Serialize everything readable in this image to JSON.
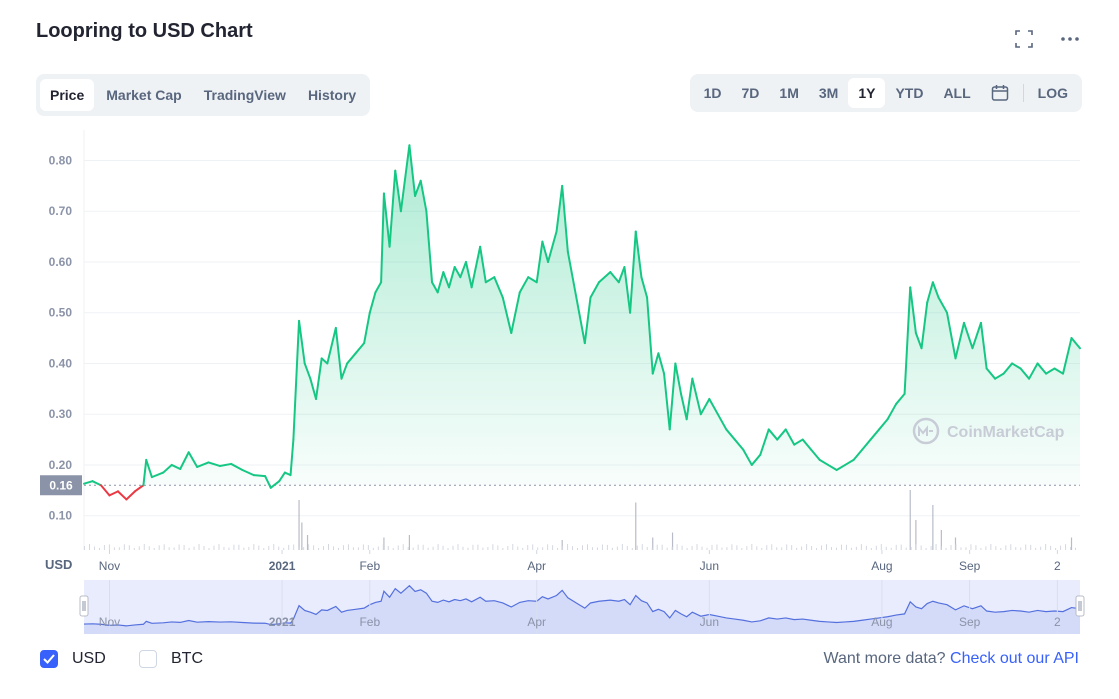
{
  "title": "Loopring to USD Chart",
  "header_icons": [
    "fullscreen-icon",
    "more-options-icon"
  ],
  "tabs": [
    {
      "label": "Price",
      "active": true
    },
    {
      "label": "Market Cap",
      "active": false
    },
    {
      "label": "TradingView",
      "active": false
    },
    {
      "label": "History",
      "active": false
    }
  ],
  "ranges": [
    {
      "label": "1D",
      "active": false
    },
    {
      "label": "7D",
      "active": false
    },
    {
      "label": "1M",
      "active": false
    },
    {
      "label": "3M",
      "active": false
    },
    {
      "label": "1Y",
      "active": true
    },
    {
      "label": "YTD",
      "active": false
    },
    {
      "label": "ALL",
      "active": false
    }
  ],
  "scale_label": "LOG",
  "calendar_icon": "calendar-icon",
  "colors": {
    "up": "#16c784",
    "down": "#ea3943",
    "accent": "#3861fb",
    "volume": "#b8bcc8",
    "navigator": "#5470de"
  },
  "watermark": "CoinMarketCap",
  "currency_label": "USD",
  "checkboxes": [
    {
      "label": "USD",
      "checked": true
    },
    {
      "label": "BTC",
      "checked": false
    }
  ],
  "more_data": {
    "text": "Want more data?",
    "link": "Check out our API"
  },
  "chart_data": {
    "type": "area",
    "title": "Loopring to USD Chart",
    "ylabel": "USD",
    "ylim": [
      0.06,
      0.86
    ],
    "y_ticks": [
      "0.10",
      "0.20",
      "0.30",
      "0.40",
      "0.50",
      "0.60",
      "0.70",
      "0.80"
    ],
    "current_price_label": "0.16",
    "baseline": 0.16,
    "x_range": [
      "2020-10-23",
      "2021-10-10"
    ],
    "x_ticks": [
      {
        "label": "Nov",
        "date": "2020-11-01"
      },
      {
        "label": "2021",
        "date": "2021-01-01"
      },
      {
        "label": "Feb",
        "date": "2021-02-01"
      },
      {
        "label": "Apr",
        "date": "2021-04-01"
      },
      {
        "label": "Jun",
        "date": "2021-06-01"
      },
      {
        "label": "Aug",
        "date": "2021-08-01"
      },
      {
        "label": "Sep",
        "date": "2021-09-01"
      },
      {
        "label": "2",
        "date": "2021-10-02"
      }
    ],
    "series": [
      {
        "points": [
          [
            "2020-10-23",
            0.163
          ],
          [
            "2020-10-26",
            0.168
          ],
          [
            "2020-10-29",
            0.16
          ],
          [
            "2020-11-01",
            0.14
          ],
          [
            "2020-11-04",
            0.148
          ],
          [
            "2020-11-07",
            0.132
          ],
          [
            "2020-11-10",
            0.148
          ],
          [
            "2020-11-13",
            0.16
          ],
          [
            "2020-11-14",
            0.21
          ],
          [
            "2020-11-16",
            0.176
          ],
          [
            "2020-11-20",
            0.185
          ],
          [
            "2020-11-23",
            0.2
          ],
          [
            "2020-11-26",
            0.192
          ],
          [
            "2020-11-29",
            0.225
          ],
          [
            "2020-12-02",
            0.196
          ],
          [
            "2020-12-06",
            0.205
          ],
          [
            "2020-12-10",
            0.198
          ],
          [
            "2020-12-14",
            0.202
          ],
          [
            "2020-12-18",
            0.19
          ],
          [
            "2020-12-22",
            0.18
          ],
          [
            "2020-12-26",
            0.178
          ],
          [
            "2020-12-28",
            0.155
          ],
          [
            "2020-12-31",
            0.168
          ],
          [
            "2021-01-02",
            0.185
          ],
          [
            "2021-01-04",
            0.18
          ],
          [
            "2021-01-05",
            0.25
          ],
          [
            "2021-01-07",
            0.484
          ],
          [
            "2021-01-09",
            0.4
          ],
          [
            "2021-01-11",
            0.37
          ],
          [
            "2021-01-13",
            0.33
          ],
          [
            "2021-01-15",
            0.41
          ],
          [
            "2021-01-17",
            0.4
          ],
          [
            "2021-01-20",
            0.47
          ],
          [
            "2021-01-22",
            0.37
          ],
          [
            "2021-01-24",
            0.4
          ],
          [
            "2021-01-27",
            0.42
          ],
          [
            "2021-01-30",
            0.44
          ],
          [
            "2021-02-01",
            0.5
          ],
          [
            "2021-02-03",
            0.54
          ],
          [
            "2021-02-05",
            0.56
          ],
          [
            "2021-02-06",
            0.735
          ],
          [
            "2021-02-08",
            0.63
          ],
          [
            "2021-02-10",
            0.78
          ],
          [
            "2021-02-12",
            0.7
          ],
          [
            "2021-02-15",
            0.83
          ],
          [
            "2021-02-17",
            0.73
          ],
          [
            "2021-02-19",
            0.76
          ],
          [
            "2021-02-21",
            0.7
          ],
          [
            "2021-02-23",
            0.56
          ],
          [
            "2021-02-25",
            0.54
          ],
          [
            "2021-02-27",
            0.58
          ],
          [
            "2021-03-01",
            0.55
          ],
          [
            "2021-03-03",
            0.59
          ],
          [
            "2021-03-05",
            0.57
          ],
          [
            "2021-03-07",
            0.6
          ],
          [
            "2021-03-09",
            0.55
          ],
          [
            "2021-03-12",
            0.63
          ],
          [
            "2021-03-14",
            0.56
          ],
          [
            "2021-03-17",
            0.57
          ],
          [
            "2021-03-20",
            0.53
          ],
          [
            "2021-03-23",
            0.46
          ],
          [
            "2021-03-26",
            0.54
          ],
          [
            "2021-03-29",
            0.57
          ],
          [
            "2021-04-01",
            0.56
          ],
          [
            "2021-04-03",
            0.64
          ],
          [
            "2021-04-05",
            0.6
          ],
          [
            "2021-04-08",
            0.66
          ],
          [
            "2021-04-10",
            0.75
          ],
          [
            "2021-04-12",
            0.62
          ],
          [
            "2021-04-14",
            0.56
          ],
          [
            "2021-04-16",
            0.5
          ],
          [
            "2021-04-18",
            0.44
          ],
          [
            "2021-04-20",
            0.53
          ],
          [
            "2021-04-23",
            0.56
          ],
          [
            "2021-04-27",
            0.58
          ],
          [
            "2021-04-30",
            0.56
          ],
          [
            "2021-05-02",
            0.59
          ],
          [
            "2021-05-04",
            0.5
          ],
          [
            "2021-05-06",
            0.66
          ],
          [
            "2021-05-08",
            0.57
          ],
          [
            "2021-05-10",
            0.53
          ],
          [
            "2021-05-12",
            0.38
          ],
          [
            "2021-05-14",
            0.42
          ],
          [
            "2021-05-16",
            0.38
          ],
          [
            "2021-05-18",
            0.27
          ],
          [
            "2021-05-20",
            0.4
          ],
          [
            "2021-05-22",
            0.34
          ],
          [
            "2021-05-24",
            0.29
          ],
          [
            "2021-05-26",
            0.37
          ],
          [
            "2021-05-29",
            0.3
          ],
          [
            "2021-06-01",
            0.33
          ],
          [
            "2021-06-04",
            0.3
          ],
          [
            "2021-06-07",
            0.27
          ],
          [
            "2021-06-10",
            0.25
          ],
          [
            "2021-06-13",
            0.23
          ],
          [
            "2021-06-16",
            0.2
          ],
          [
            "2021-06-19",
            0.22
          ],
          [
            "2021-06-22",
            0.27
          ],
          [
            "2021-06-25",
            0.25
          ],
          [
            "2021-06-28",
            0.27
          ],
          [
            "2021-07-01",
            0.24
          ],
          [
            "2021-07-04",
            0.25
          ],
          [
            "2021-07-07",
            0.23
          ],
          [
            "2021-07-10",
            0.21
          ],
          [
            "2021-07-13",
            0.2
          ],
          [
            "2021-07-16",
            0.19
          ],
          [
            "2021-07-19",
            0.2
          ],
          [
            "2021-07-22",
            0.21
          ],
          [
            "2021-07-25",
            0.23
          ],
          [
            "2021-07-28",
            0.25
          ],
          [
            "2021-07-31",
            0.27
          ],
          [
            "2021-08-03",
            0.29
          ],
          [
            "2021-08-06",
            0.32
          ],
          [
            "2021-08-09",
            0.34
          ],
          [
            "2021-08-11",
            0.55
          ],
          [
            "2021-08-13",
            0.46
          ],
          [
            "2021-08-15",
            0.43
          ],
          [
            "2021-08-17",
            0.52
          ],
          [
            "2021-08-19",
            0.56
          ],
          [
            "2021-08-21",
            0.53
          ],
          [
            "2021-08-24",
            0.5
          ],
          [
            "2021-08-27",
            0.41
          ],
          [
            "2021-08-30",
            0.48
          ],
          [
            "2021-09-02",
            0.43
          ],
          [
            "2021-09-05",
            0.48
          ],
          [
            "2021-09-07",
            0.39
          ],
          [
            "2021-09-10",
            0.37
          ],
          [
            "2021-09-13",
            0.38
          ],
          [
            "2021-09-16",
            0.4
          ],
          [
            "2021-09-19",
            0.39
          ],
          [
            "2021-09-22",
            0.37
          ],
          [
            "2021-09-25",
            0.4
          ],
          [
            "2021-09-28",
            0.38
          ],
          [
            "2021-10-01",
            0.39
          ],
          [
            "2021-10-04",
            0.38
          ],
          [
            "2021-10-07",
            0.45
          ],
          [
            "2021-10-10",
            0.43
          ]
        ]
      }
    ],
    "volume": [
      [
        "2021-01-07",
        1.0
      ],
      [
        "2021-01-08",
        0.55
      ],
      [
        "2021-01-10",
        0.3
      ],
      [
        "2021-02-06",
        0.25
      ],
      [
        "2021-02-15",
        0.3
      ],
      [
        "2021-04-10",
        0.2
      ],
      [
        "2021-05-06",
        0.95
      ],
      [
        "2021-05-12",
        0.25
      ],
      [
        "2021-05-19",
        0.35
      ],
      [
        "2021-08-11",
        1.2
      ],
      [
        "2021-08-13",
        0.6
      ],
      [
        "2021-08-19",
        0.9
      ],
      [
        "2021-08-22",
        0.4
      ],
      [
        "2021-08-27",
        0.25
      ],
      [
        "2021-10-07",
        0.25
      ]
    ],
    "grid": true
  }
}
